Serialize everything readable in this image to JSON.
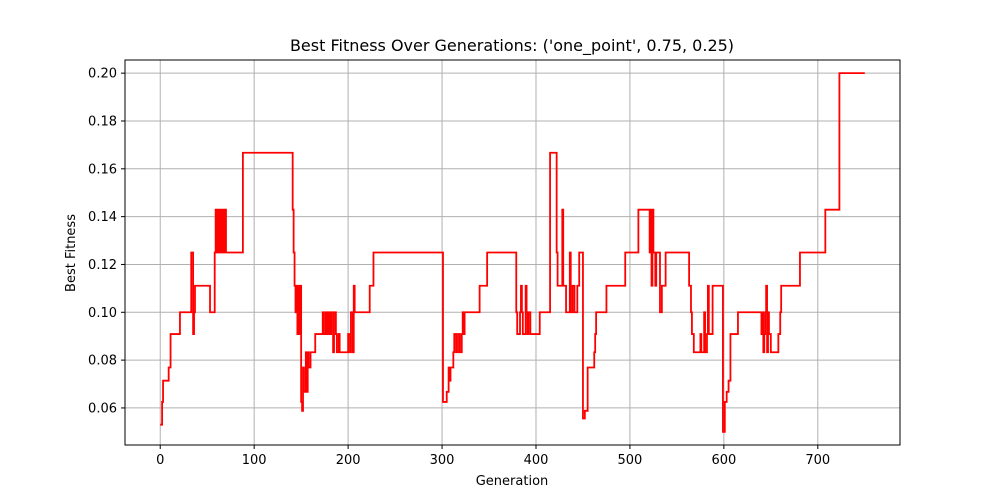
{
  "chart_data": {
    "type": "line",
    "title": "Best Fitness Over Generations: ('one_point', 0.75, 0.25)",
    "xlabel": "Generation",
    "ylabel": "Best Fitness",
    "xlim": [
      -37.5,
      787.5
    ],
    "ylim": [
      0.0445,
      0.2055
    ],
    "xticks": [
      0,
      100,
      200,
      300,
      400,
      500,
      600,
      700
    ],
    "yticks": [
      0.06,
      0.08,
      0.1,
      0.12,
      0.14,
      0.16,
      0.18,
      0.2
    ],
    "ytick_labels": [
      "0.06",
      "0.08",
      "0.10",
      "0.12",
      "0.14",
      "0.16",
      "0.18",
      "0.20"
    ],
    "grid": true,
    "series": [
      {
        "color": "#ff0000",
        "step": true,
        "points": [
          [
            0,
            0.053
          ],
          [
            2,
            0.0625
          ],
          [
            3,
            0.0714
          ],
          [
            8,
            0.0714
          ],
          [
            9,
            0.0769
          ],
          [
            10,
            0.0769
          ],
          [
            11,
            0.0909
          ],
          [
            20,
            0.0909
          ],
          [
            21,
            0.1
          ],
          [
            32,
            0.1
          ],
          [
            33,
            0.125
          ],
          [
            34,
            0.125
          ],
          [
            35,
            0.0909
          ],
          [
            36,
            0.1
          ],
          [
            37,
            0.1111
          ],
          [
            52,
            0.1111
          ],
          [
            53,
            0.1
          ],
          [
            57,
            0.1
          ],
          [
            58,
            0.125
          ],
          [
            59,
            0.1429
          ],
          [
            60,
            0.125
          ],
          [
            61,
            0.1429
          ],
          [
            62,
            0.125
          ],
          [
            63,
            0.1429
          ],
          [
            64,
            0.125
          ],
          [
            65,
            0.1429
          ],
          [
            66,
            0.125
          ],
          [
            67,
            0.1429
          ],
          [
            68,
            0.125
          ],
          [
            69,
            0.1429
          ],
          [
            70,
            0.125
          ],
          [
            87,
            0.125
          ],
          [
            88,
            0.1667
          ],
          [
            140,
            0.1667
          ],
          [
            141,
            0.1429
          ],
          [
            142,
            0.125
          ],
          [
            143,
            0.1111
          ],
          [
            144,
            0.1
          ],
          [
            145,
            0.1111
          ],
          [
            146,
            0.0909
          ],
          [
            147,
            0.1111
          ],
          [
            148,
            0.0909
          ],
          [
            149,
            0.1111
          ],
          [
            150,
            0.0625
          ],
          [
            151,
            0.0588
          ],
          [
            152,
            0.0769
          ],
          [
            153,
            0.0667
          ],
          [
            155,
            0.0833
          ],
          [
            156,
            0.0667
          ],
          [
            157,
            0.0833
          ],
          [
            158,
            0.0769
          ],
          [
            160,
            0.0833
          ],
          [
            165,
            0.0909
          ],
          [
            172,
            0.0909
          ],
          [
            173,
            0.1
          ],
          [
            174,
            0.0909
          ],
          [
            176,
            0.1
          ],
          [
            177,
            0.0909
          ],
          [
            178,
            0.1
          ],
          [
            179,
            0.0909
          ],
          [
            180,
            0.1
          ],
          [
            181,
            0.0909
          ],
          [
            182,
            0.1
          ],
          [
            184,
            0.0833
          ],
          [
            185,
            0.1
          ],
          [
            187,
            0.0909
          ],
          [
            188,
            0.0833
          ],
          [
            190,
            0.0909
          ],
          [
            191,
            0.0833
          ],
          [
            199,
            0.0833
          ],
          [
            200,
            0.0909
          ],
          [
            202,
            0.0833
          ],
          [
            203,
            0.1
          ],
          [
            205,
            0.0833
          ],
          [
            206,
            0.1111
          ],
          [
            207,
            0.1
          ],
          [
            222,
            0.1
          ],
          [
            223,
            0.1111
          ],
          [
            226,
            0.1111
          ],
          [
            227,
            0.125
          ],
          [
            300,
            0.125
          ],
          [
            301,
            0.0625
          ],
          [
            305,
            0.0667
          ],
          [
            307,
            0.0769
          ],
          [
            308,
            0.0714
          ],
          [
            309,
            0.0769
          ],
          [
            312,
            0.0833
          ],
          [
            313,
            0.0909
          ],
          [
            315,
            0.0833
          ],
          [
            317,
            0.0909
          ],
          [
            319,
            0.0833
          ],
          [
            321,
            0.0909
          ],
          [
            322,
            0.1
          ],
          [
            323,
            0.0909
          ],
          [
            324,
            0.1
          ],
          [
            339,
            0.1
          ],
          [
            340,
            0.1111
          ],
          [
            347,
            0.1111
          ],
          [
            348,
            0.125
          ],
          [
            378,
            0.125
          ],
          [
            379,
            0.1
          ],
          [
            380,
            0.0909
          ],
          [
            383,
            0.1
          ],
          [
            384,
            0.1111
          ],
          [
            385,
            0.1
          ],
          [
            386,
            0.0909
          ],
          [
            389,
            0.1111
          ],
          [
            390,
            0.1
          ],
          [
            391,
            0.0909
          ],
          [
            392,
            0.1
          ],
          [
            394,
            0.0909
          ],
          [
            403,
            0.0909
          ],
          [
            404,
            0.1
          ],
          [
            414,
            0.1
          ],
          [
            415,
            0.1667
          ],
          [
            421,
            0.1667
          ],
          [
            422,
            0.125
          ],
          [
            423,
            0.1111
          ],
          [
            428,
            0.1429
          ],
          [
            429,
            0.1111
          ],
          [
            432,
            0.1
          ],
          [
            436,
            0.125
          ],
          [
            437,
            0.1
          ],
          [
            439,
            0.1111
          ],
          [
            441,
            0.1
          ],
          [
            444,
            0.1111
          ],
          [
            446,
            0.125
          ],
          [
            449,
            0.125
          ],
          [
            450,
            0.0556
          ],
          [
            452,
            0.0588
          ],
          [
            455,
            0.0769
          ],
          [
            461,
            0.0769
          ],
          [
            462,
            0.0833
          ],
          [
            463,
            0.0909
          ],
          [
            464,
            0.1
          ],
          [
            474,
            0.1
          ],
          [
            475,
            0.1111
          ],
          [
            494,
            0.1111
          ],
          [
            495,
            0.125
          ],
          [
            508,
            0.125
          ],
          [
            509,
            0.1429
          ],
          [
            520,
            0.1429
          ],
          [
            521,
            0.125
          ],
          [
            522,
            0.1429
          ],
          [
            523,
            0.1111
          ],
          [
            524,
            0.1429
          ],
          [
            525,
            0.125
          ],
          [
            526,
            0.125
          ],
          [
            527,
            0.1111
          ],
          [
            528,
            0.125
          ],
          [
            532,
            0.1
          ],
          [
            534,
            0.1111
          ],
          [
            537,
            0.1111
          ],
          [
            538,
            0.125
          ],
          [
            562,
            0.125
          ],
          [
            563,
            0.1111
          ],
          [
            565,
            0.1
          ],
          [
            566,
            0.0909
          ],
          [
            568,
            0.0833
          ],
          [
            574,
            0.0833
          ],
          [
            575,
            0.0909
          ],
          [
            576,
            0.0833
          ],
          [
            579,
            0.1
          ],
          [
            580,
            0.0833
          ],
          [
            582,
            0.0909
          ],
          [
            583,
            0.1111
          ],
          [
            584,
            0.0909
          ],
          [
            587,
            0.0909
          ],
          [
            588,
            0.1111
          ],
          [
            598,
            0.1111
          ],
          [
            599,
            0.05
          ],
          [
            601,
            0.0625
          ],
          [
            603,
            0.0667
          ],
          [
            605,
            0.0714
          ],
          [
            607,
            0.0909
          ],
          [
            614,
            0.0909
          ],
          [
            615,
            0.1
          ],
          [
            639,
            0.1
          ],
          [
            640,
            0.0909
          ],
          [
            641,
            0.1
          ],
          [
            642,
            0.0833
          ],
          [
            643,
            0.0909
          ],
          [
            644,
            0.1
          ],
          [
            645,
            0.1111
          ],
          [
            646,
            0.0833
          ],
          [
            647,
            0.1
          ],
          [
            648,
            0.0909
          ],
          [
            650,
            0.0833
          ],
          [
            657,
            0.0833
          ],
          [
            658,
            0.0909
          ],
          [
            660,
            0.1
          ],
          [
            661,
            0.1111
          ],
          [
            680,
            0.1111
          ],
          [
            681,
            0.125
          ],
          [
            707,
            0.125
          ],
          [
            708,
            0.1429
          ],
          [
            722,
            0.1429
          ],
          [
            723,
            0.2
          ],
          [
            750,
            0.2
          ]
        ]
      }
    ]
  }
}
